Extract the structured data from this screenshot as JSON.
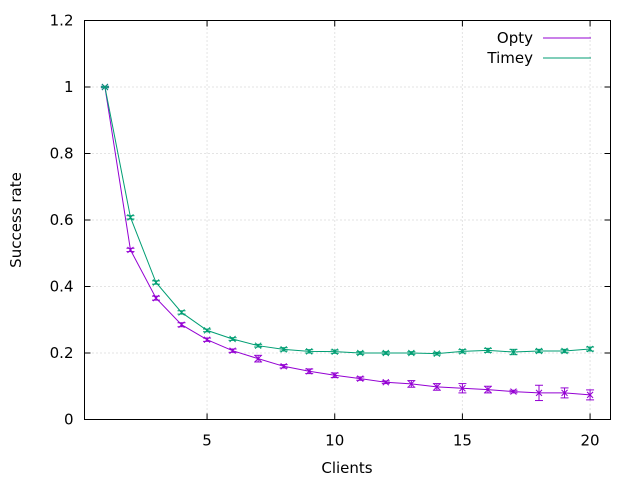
{
  "chart_data": {
    "type": "line",
    "title": "",
    "xlabel": "Clients",
    "ylabel": "Success rate",
    "xlim": [
      0.2,
      20.8
    ],
    "ylim": [
      0,
      1.2
    ],
    "xticks": [
      5,
      10,
      15,
      20
    ],
    "yticks": [
      0,
      0.2,
      0.4,
      0.6,
      0.8,
      1,
      1.2
    ],
    "ytick_labels": [
      "0",
      "0.2",
      "0.4",
      "0.6",
      "0.8",
      "1",
      "1.2"
    ],
    "grid": true,
    "legend_position": "top-right",
    "x": [
      1,
      2,
      3,
      4,
      5,
      6,
      7,
      8,
      9,
      10,
      11,
      12,
      13,
      14,
      15,
      16,
      17,
      18,
      19,
      20
    ],
    "series": [
      {
        "name": "Opty",
        "color": "#9400d3",
        "values": [
          1.0,
          0.51,
          0.365,
          0.285,
          0.24,
          0.207,
          0.183,
          0.16,
          0.145,
          0.133,
          0.123,
          0.112,
          0.107,
          0.098,
          0.094,
          0.09,
          0.084,
          0.08,
          0.08,
          0.074
        ],
        "errors": [
          0.002,
          0.005,
          0.006,
          0.006,
          0.005,
          0.005,
          0.01,
          0.005,
          0.007,
          0.007,
          0.005,
          0.004,
          0.01,
          0.01,
          0.014,
          0.01,
          0.004,
          0.023,
          0.015,
          0.015
        ]
      },
      {
        "name": "Timey",
        "color": "#009e73",
        "values": [
          1.0,
          0.608,
          0.412,
          0.322,
          0.268,
          0.242,
          0.222,
          0.211,
          0.205,
          0.204,
          0.2,
          0.2,
          0.2,
          0.198,
          0.205,
          0.208,
          0.203,
          0.206,
          0.206,
          0.212
        ],
        "errors": [
          0.002,
          0.005,
          0.005,
          0.005,
          0.004,
          0.004,
          0.004,
          0.005,
          0.005,
          0.005,
          0.004,
          0.004,
          0.004,
          0.004,
          0.005,
          0.006,
          0.008,
          0.005,
          0.005,
          0.006
        ]
      }
    ]
  }
}
